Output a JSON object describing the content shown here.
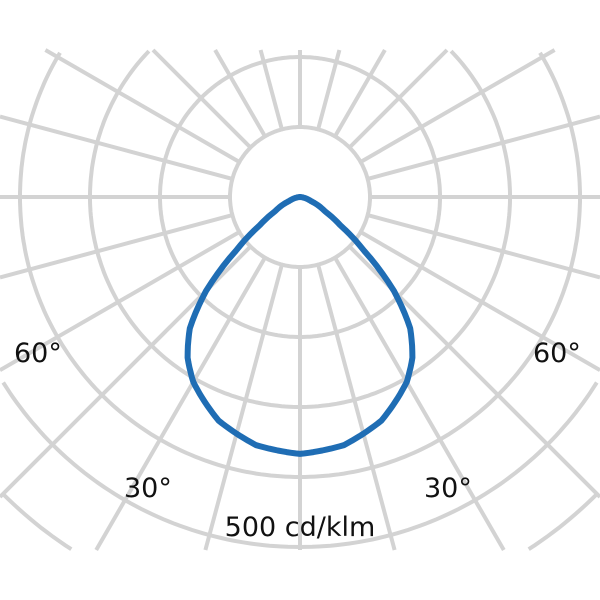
{
  "chart_data": {
    "type": "polar-line",
    "angle_labels": {
      "left_60": "60°",
      "right_60": "60°",
      "left_30": "30°",
      "right_30": "30°"
    },
    "scale_label": "500 cd/klm",
    "unit": "cd/klm",
    "grid": true,
    "grid_angle_step_deg": 15,
    "grid_ring_step": 100,
    "grid_color": "#d3d3d3",
    "series": [
      {
        "color": "#1f6db4",
        "angles_deg": [
          0,
          10,
          20,
          30,
          35,
          40,
          45,
          50,
          55,
          60,
          70,
          80,
          90
        ],
        "intensity": [
          367,
          360,
          340,
          305,
          280,
          245,
          190,
          120,
          70,
          42,
          16,
          5,
          0
        ],
        "symmetric": true
      }
    ]
  }
}
